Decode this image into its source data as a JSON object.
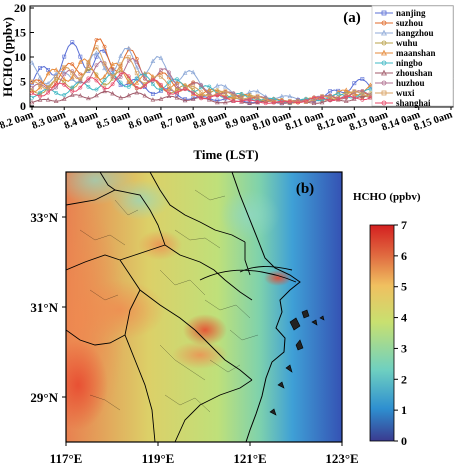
{
  "chart_data": [
    {
      "type": "line",
      "panel_label": "(a)",
      "ylabel": "HCHO (ppbv)",
      "xlabel": "Time (LST)",
      "ylim": [
        0,
        20
      ],
      "yticks": [
        "0",
        "5",
        "10",
        "15",
        "20"
      ],
      "x_ticks": [
        "8.2 0am",
        "8.3 0am",
        "8.4 0am",
        "8.5 0am",
        "8.6 0am",
        "8.7 0am",
        "8.8 0am",
        "8.9 0am",
        "8.10 0am",
        "8.11 0am",
        "8.12 0am",
        "8.13 0am",
        "8.14 0am",
        "8.15 0am"
      ],
      "legend_position": "right",
      "series": [
        {
          "name": "nanjing",
          "color": "#5a6fd6",
          "marker": "square",
          "values": [
            6,
            13,
            13,
            6,
            4,
            2,
            2,
            1,
            1,
            2,
            6,
            4,
            7,
            8
          ]
        },
        {
          "name": "suzhou",
          "color": "#e06a2a",
          "marker": "circle",
          "values": [
            5,
            8,
            14,
            12,
            7,
            5,
            3,
            2,
            1,
            2,
            3,
            4,
            6,
            7
          ]
        },
        {
          "name": "hangzhou",
          "color": "#8faad8",
          "marker": "triangle",
          "values": [
            9,
            7,
            11,
            12,
            10,
            7,
            4,
            3,
            2,
            2,
            3,
            5,
            7,
            6
          ]
        },
        {
          "name": "wuhu",
          "color": "#b9a14a",
          "marker": "circle",
          "values": [
            4,
            6,
            8,
            7,
            5,
            4,
            3,
            2,
            1,
            2,
            3,
            4,
            5,
            5
          ]
        },
        {
          "name": "maanshan",
          "color": "#e68a3a",
          "marker": "triangle",
          "values": [
            5,
            9,
            10,
            8,
            6,
            4,
            3,
            2,
            1,
            2,
            4,
            5,
            6,
            6
          ]
        },
        {
          "name": "ningbo",
          "color": "#3fb8c4",
          "marker": "circle",
          "values": [
            3,
            4,
            6,
            7,
            6,
            5,
            3,
            2,
            1,
            2,
            3,
            4,
            5,
            5
          ]
        },
        {
          "name": "zhoushan",
          "color": "#a05a6a",
          "marker": "triangle",
          "values": [
            1,
            2,
            3,
            3,
            2,
            2,
            1,
            1,
            1,
            1,
            2,
            2,
            2,
            2
          ]
        },
        {
          "name": "huzhou",
          "color": "#b07090",
          "marker": "circle",
          "values": [
            4,
            7,
            9,
            10,
            8,
            5,
            3,
            2,
            1,
            2,
            3,
            4,
            6,
            6
          ]
        },
        {
          "name": "wuxi",
          "color": "#d8a060",
          "marker": "square",
          "values": [
            5,
            8,
            12,
            10,
            6,
            4,
            3,
            2,
            1,
            2,
            3,
            4,
            6,
            7
          ]
        },
        {
          "name": "shanghai",
          "color": "#e84a6a",
          "marker": "circle",
          "values": [
            3,
            5,
            6,
            7,
            5,
            3,
            2,
            1,
            1,
            2,
            2,
            3,
            4,
            5
          ]
        }
      ]
    },
    {
      "type": "heatmap",
      "panel_label": "(b)",
      "colorbar_label": "HCHO (ppbv)",
      "colorbar_range": [
        0,
        7
      ],
      "colorbar_ticks": [
        "0",
        "1",
        "2",
        "3",
        "4",
        "5",
        "6",
        "7"
      ],
      "x_ticks": [
        "117°E",
        "119°E",
        "121°E",
        "123°E"
      ],
      "y_ticks": [
        "29°N",
        "31°N",
        "33°N"
      ],
      "xlim": [
        117,
        123
      ],
      "ylim": [
        28,
        34
      ],
      "colors": [
        "#3a3a8f",
        "#2e8fd0",
        "#6fd0c0",
        "#c8e070",
        "#f0c060",
        "#e06a40",
        "#d42020"
      ]
    }
  ]
}
